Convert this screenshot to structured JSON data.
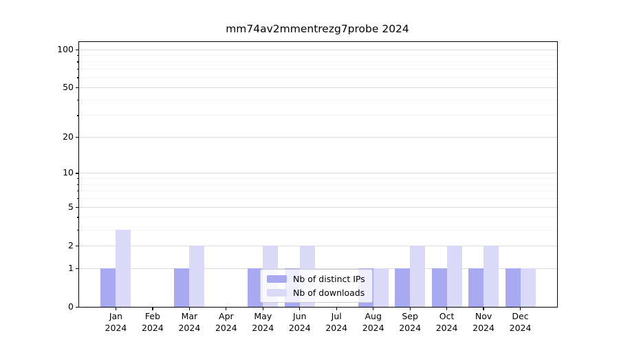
{
  "title": "mm74av2mmentrezg7probe 2024",
  "chart_data": {
    "type": "bar",
    "title": "mm74av2mmentrezg7probe 2024",
    "x_ticklabels": [
      [
        "Jan",
        "2024"
      ],
      [
        "Feb",
        "2024"
      ],
      [
        "Mar",
        "2024"
      ],
      [
        "Apr",
        "2024"
      ],
      [
        "May",
        "2024"
      ],
      [
        "Jun",
        "2024"
      ],
      [
        "Jul",
        "2024"
      ],
      [
        "Aug",
        "2024"
      ],
      [
        "Sep",
        "2024"
      ],
      [
        "Oct",
        "2024"
      ],
      [
        "Nov",
        "2024"
      ],
      [
        "Dec",
        "2024"
      ]
    ],
    "series": [
      {
        "name": "Nb of distinct IPs",
        "color": "#a9a9f2",
        "values": [
          1,
          0,
          1,
          0,
          1,
          1,
          0,
          1,
          1,
          1,
          1,
          1
        ]
      },
      {
        "name": "Nb of downloads",
        "color": "#dadaf8",
        "values": [
          3,
          0,
          2,
          0,
          2,
          2,
          0,
          1,
          2,
          2,
          2,
          1
        ]
      }
    ],
    "y_ticks": [
      0,
      1,
      2,
      5,
      10,
      20,
      50,
      100
    ],
    "y_minor_ticks": [
      3,
      4,
      6,
      7,
      8,
      9,
      30,
      40,
      60,
      70,
      80,
      90
    ],
    "y_scale": "log1p",
    "ylim": [
      0,
      113
    ],
    "grid": "horizontal-gridlines-on",
    "legend_position": "inside-lower-center"
  },
  "legend": {
    "items": [
      "Nb of distinct IPs",
      "Nb of downloads"
    ]
  }
}
